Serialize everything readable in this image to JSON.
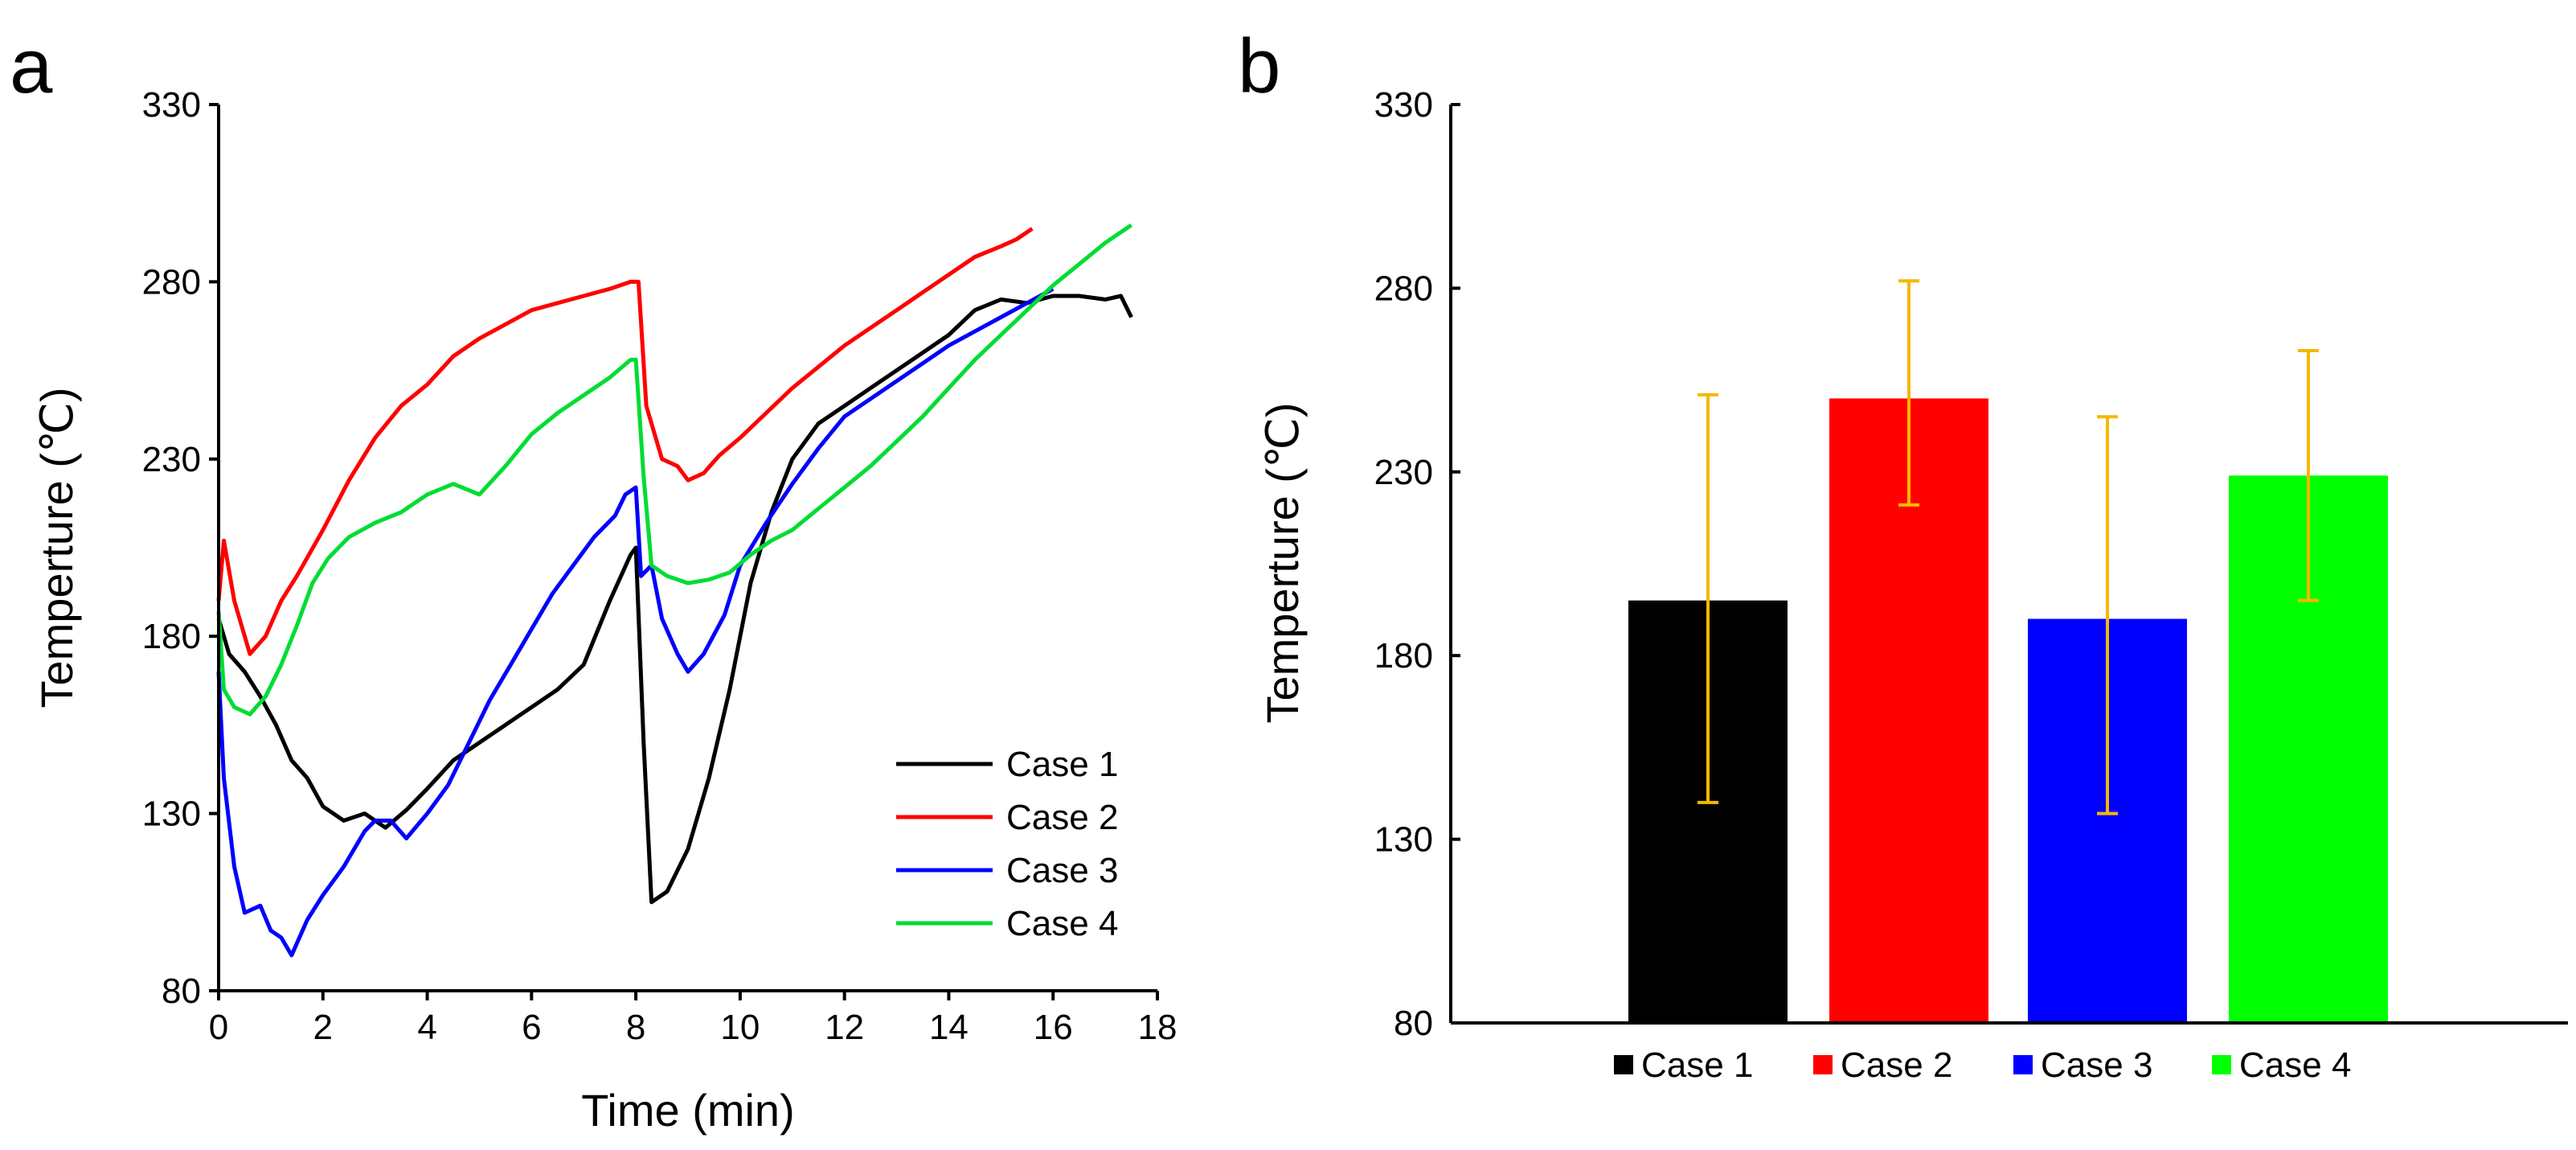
{
  "chart_data": [
    {
      "panel_label": "a",
      "type": "line",
      "title": "",
      "xlabel": "Time (min)",
      "ylabel": "Temperture (℃)",
      "xlim": [
        0,
        18
      ],
      "ylim": [
        80,
        330
      ],
      "xticks": [
        0,
        2,
        4,
        6,
        8,
        10,
        12,
        14,
        16,
        18
      ],
      "yticks": [
        80,
        130,
        180,
        230,
        280,
        330
      ],
      "grid": false,
      "legend_position": "bottom-right",
      "series": [
        {
          "name": "Case 1",
          "color": "#000000",
          "x": [
            0,
            0.2,
            0.5,
            0.8,
            1.1,
            1.4,
            1.7,
            2.0,
            2.4,
            2.8,
            3.2,
            3.6,
            4.0,
            4.5,
            5.0,
            5.5,
            6.0,
            6.5,
            7.0,
            7.5,
            7.9,
            8.0,
            8.15,
            8.3,
            8.6,
            9.0,
            9.4,
            9.8,
            10.2,
            10.6,
            11.0,
            11.5,
            12.0,
            12.5,
            13.0,
            13.5,
            14.0,
            14.5,
            15.0,
            15.5,
            16.0,
            16.5,
            17.0,
            17.3,
            17.5
          ],
          "y": [
            185,
            175,
            170,
            163,
            155,
            145,
            140,
            132,
            128,
            130,
            126,
            131,
            137,
            145,
            150,
            155,
            160,
            165,
            172,
            190,
            203,
            205,
            150,
            105,
            108,
            120,
            140,
            165,
            195,
            215,
            230,
            240,
            245,
            250,
            255,
            260,
            265,
            272,
            275,
            274,
            276,
            276,
            275,
            276,
            270
          ]
        },
        {
          "name": "Case 2",
          "color": "#ff0000",
          "x": [
            0,
            0.1,
            0.3,
            0.6,
            0.9,
            1.2,
            1.5,
            2.0,
            2.5,
            3.0,
            3.5,
            4.0,
            4.5,
            5.0,
            5.5,
            6.0,
            6.5,
            7.0,
            7.5,
            7.9,
            8.05,
            8.2,
            8.5,
            8.8,
            9.0,
            9.3,
            9.6,
            10.0,
            10.5,
            11.0,
            11.5,
            12.0,
            12.5,
            13.0,
            13.5,
            14.0,
            14.5,
            15.0,
            15.3,
            15.6
          ],
          "y": [
            190,
            207,
            190,
            175,
            180,
            190,
            197,
            210,
            224,
            236,
            245,
            251,
            259,
            264,
            268,
            272,
            274,
            276,
            278,
            280,
            280,
            245,
            230,
            228,
            224,
            226,
            231,
            236,
            243,
            250,
            256,
            262,
            267,
            272,
            277,
            282,
            287,
            290,
            292,
            295
          ]
        },
        {
          "name": "Case 3",
          "color": "#0000ff",
          "x": [
            0,
            0.1,
            0.3,
            0.5,
            0.8,
            1.0,
            1.2,
            1.4,
            1.7,
            2.0,
            2.4,
            2.8,
            3.0,
            3.3,
            3.6,
            4.0,
            4.4,
            4.8,
            5.2,
            5.6,
            6.0,
            6.4,
            6.8,
            7.2,
            7.6,
            7.8,
            8.0,
            8.1,
            8.3,
            8.5,
            8.8,
            9.0,
            9.3,
            9.7,
            10.0,
            10.5,
            11.0,
            11.5,
            12.0,
            12.5,
            13.0,
            13.5,
            14.0,
            14.5,
            15.0,
            15.5,
            16.0
          ],
          "y": [
            170,
            140,
            115,
            102,
            104,
            97,
            95,
            90,
            100,
            107,
            115,
            125,
            128,
            128,
            123,
            130,
            138,
            150,
            162,
            172,
            182,
            192,
            200,
            208,
            214,
            220,
            222,
            197,
            200,
            185,
            175,
            170,
            175,
            186,
            200,
            212,
            223,
            233,
            242,
            247,
            252,
            257,
            262,
            266,
            270,
            274,
            278
          ]
        },
        {
          "name": "Case 4",
          "color": "#00dd33",
          "x": [
            0,
            0.1,
            0.3,
            0.6,
            0.9,
            1.2,
            1.5,
            1.8,
            2.1,
            2.5,
            3.0,
            3.5,
            4.0,
            4.5,
            5.0,
            5.5,
            6.0,
            6.5,
            7.0,
            7.5,
            7.9,
            8.0,
            8.15,
            8.3,
            8.6,
            9.0,
            9.4,
            9.8,
            10.2,
            10.6,
            11.0,
            11.5,
            12.0,
            12.5,
            13.0,
            13.5,
            14.0,
            14.5,
            15.0,
            15.5,
            16.0,
            16.5,
            17.0,
            17.5
          ],
          "y": [
            187,
            165,
            160,
            158,
            163,
            172,
            183,
            195,
            202,
            208,
            212,
            215,
            220,
            223,
            220,
            228,
            237,
            243,
            248,
            253,
            258,
            258,
            225,
            200,
            197,
            195,
            196,
            198,
            203,
            207,
            210,
            216,
            222,
            228,
            235,
            242,
            250,
            258,
            265,
            272,
            279,
            285,
            291,
            296
          ]
        }
      ]
    },
    {
      "panel_label": "b",
      "type": "bar",
      "title": "",
      "xlabel": "",
      "ylabel": "Temperture (℃)",
      "ylim": [
        80,
        330
      ],
      "yticks": [
        80,
        130,
        180,
        230,
        280,
        330
      ],
      "grid": false,
      "legend_position": "bottom",
      "categories": [
        "Case 1",
        "Case 2",
        "Case 3",
        "Case 4"
      ],
      "values": [
        195,
        250,
        190,
        229
      ],
      "error_low": [
        140,
        221,
        137,
        195
      ],
      "error_high": [
        251,
        282,
        245,
        263
      ],
      "error_color": "#f5b800",
      "colors": [
        "#000000",
        "#ff0000",
        "#0000ff",
        "#00ff00"
      ]
    }
  ]
}
